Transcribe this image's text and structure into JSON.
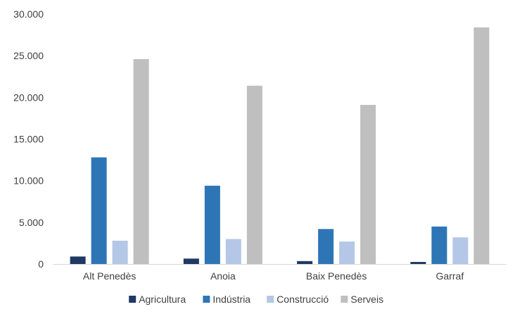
{
  "chart_data": {
    "type": "bar",
    "categories": [
      "Alt Penedès",
      "Anoia",
      "Baix Penedès",
      "Garraf"
    ],
    "series": [
      {
        "name": "Agricultura",
        "color": "#1f3864",
        "values": [
          900,
          650,
          350,
          250
        ]
      },
      {
        "name": "Indústria",
        "color": "#2e75b6",
        "values": [
          12800,
          9400,
          4200,
          4500
        ]
      },
      {
        "name": "Construcció",
        "color": "#b4c7e7",
        "values": [
          2800,
          3000,
          2700,
          3200
        ]
      },
      {
        "name": "Serveis",
        "color": "#bfbfbf",
        "values": [
          24600,
          21400,
          19100,
          28400
        ]
      }
    ],
    "y_ticks": [
      "0",
      "5.000",
      "10.000",
      "15.000",
      "20.000",
      "25.000",
      "30.000"
    ],
    "ylim": [
      0,
      30000
    ],
    "grid": false,
    "legend_position": "bottom",
    "title": "",
    "xlabel": "",
    "ylabel": ""
  }
}
